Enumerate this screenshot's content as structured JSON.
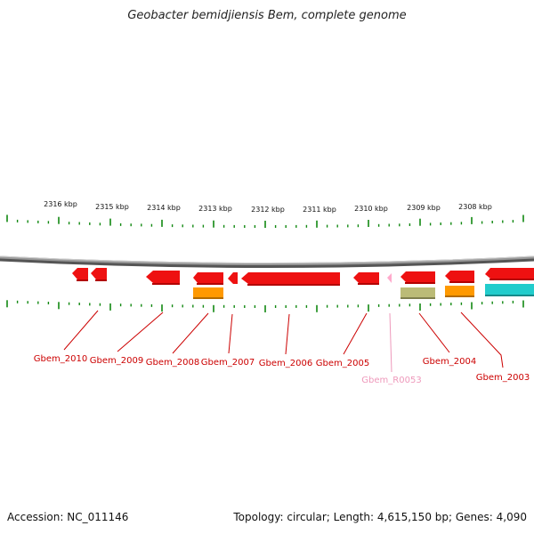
{
  "title": "Geobacter bemidjiensis Bem, complete genome",
  "footer": {
    "accession": "Accession: NC_011146",
    "summary": "Topology: circular; Length: 4,615,150 bp; Genes: 4,090"
  },
  "scale": {
    "ticks": [
      "2316 kbp",
      "2315 kbp",
      "2314 kbp",
      "2313 kbp",
      "2312 kbp",
      "2311 kbp",
      "2310 kbp",
      "2309 kbp",
      "2308 kbp"
    ]
  },
  "colors": {
    "cds": "#ee1111",
    "rna": "#ffaacc",
    "orange": "#ff9900",
    "olive": "#bbbb77",
    "cyan": "#22cccc",
    "backbone": "#888888",
    "ruler": "#118811",
    "label_red": "#cc0000",
    "label_pink": "#ee99bb"
  },
  "genes": [
    {
      "label": "Gbem_2010",
      "type": "cds"
    },
    {
      "label": "Gbem_2009",
      "type": "cds"
    },
    {
      "label": "Gbem_2008",
      "type": "cds"
    },
    {
      "label": "Gbem_2007",
      "type": "cds"
    },
    {
      "label": "Gbem_2006",
      "type": "cds"
    },
    {
      "label": "Gbem_2005",
      "type": "cds"
    },
    {
      "label": "Gbem_R0053",
      "type": "rna"
    },
    {
      "label": "Gbem_2004",
      "type": "cds"
    },
    {
      "label": "Gbem_2003",
      "type": "cds"
    }
  ]
}
